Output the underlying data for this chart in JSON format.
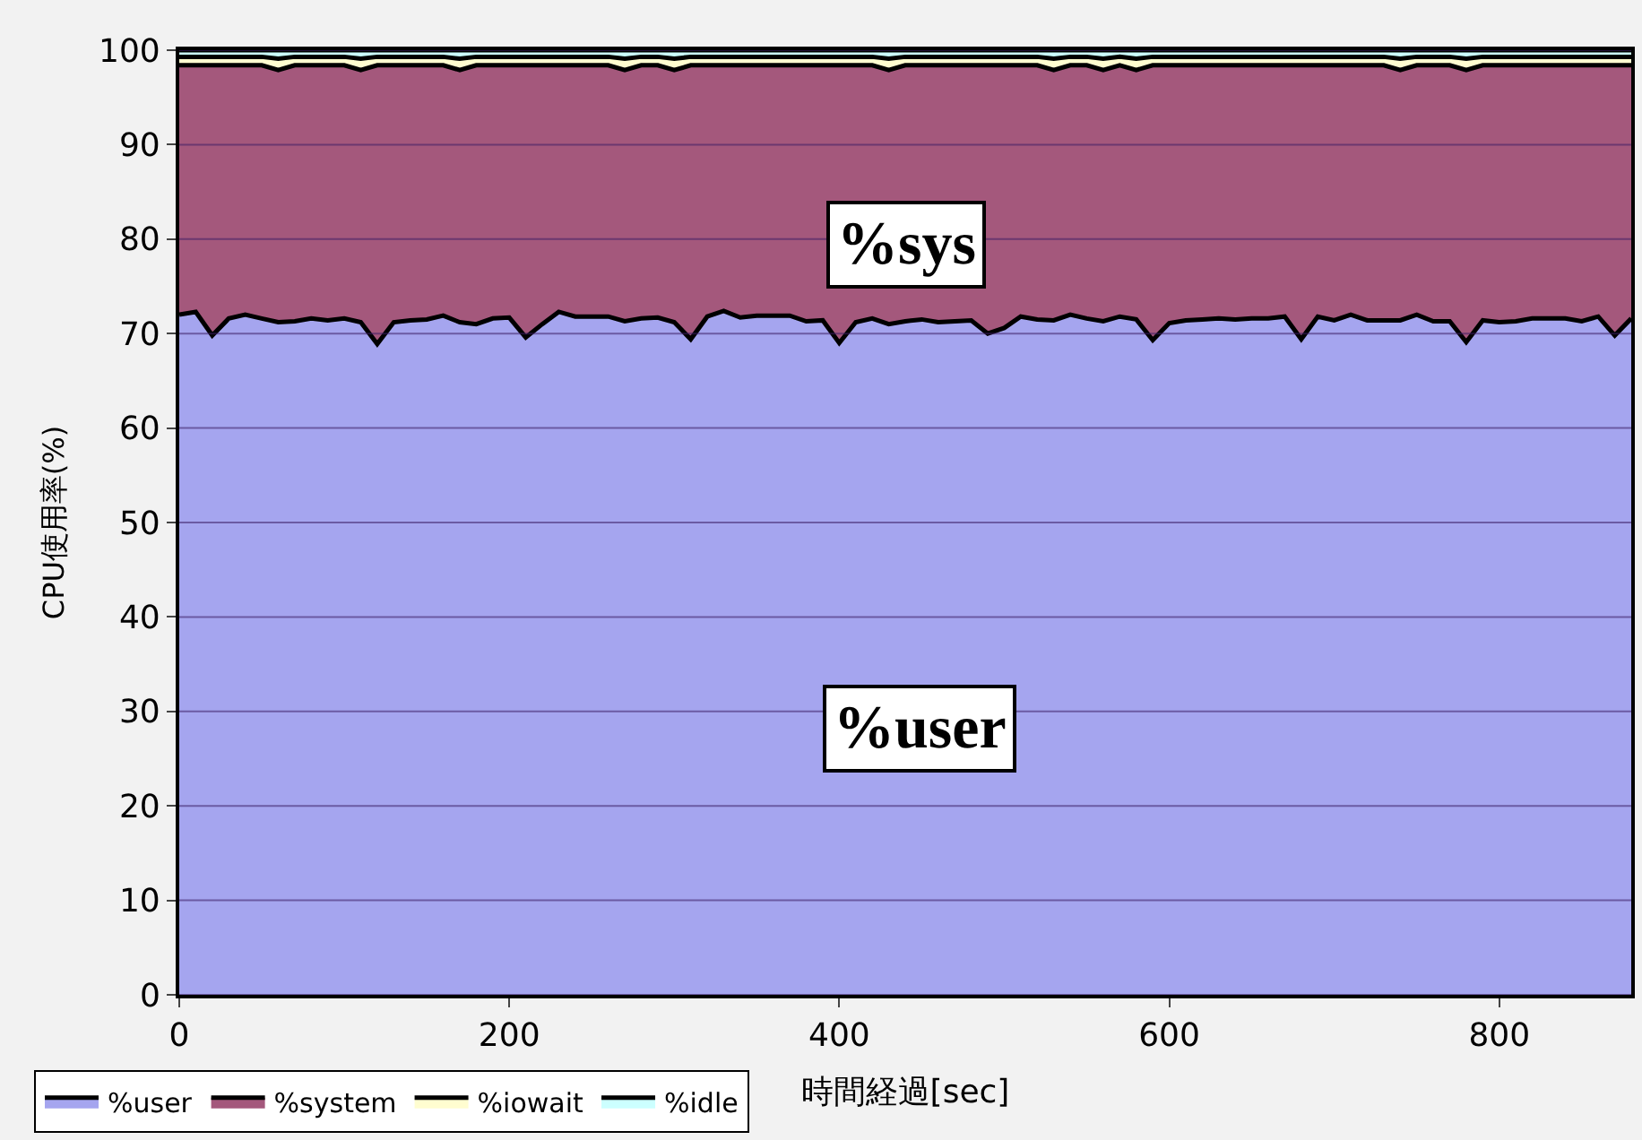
{
  "chart_data": {
    "type": "area",
    "stacked": true,
    "xlabel": "時間経過[sec]",
    "ylabel": "CPU使用率(%)",
    "x": [
      0,
      10,
      20,
      30,
      40,
      50,
      60,
      70,
      80,
      90,
      100,
      110,
      120,
      130,
      140,
      150,
      160,
      170,
      180,
      190,
      200,
      210,
      220,
      230,
      240,
      250,
      260,
      270,
      280,
      290,
      300,
      310,
      320,
      330,
      340,
      350,
      360,
      370,
      380,
      390,
      400,
      410,
      420,
      430,
      440,
      450,
      460,
      470,
      480,
      490,
      500,
      510,
      520,
      530,
      540,
      550,
      560,
      570,
      580,
      590,
      600,
      610,
      620,
      630,
      640,
      650,
      660,
      670,
      680,
      690,
      700,
      710,
      720,
      730,
      740,
      750,
      760,
      770,
      780,
      790,
      800,
      810,
      820,
      830,
      840,
      850,
      860,
      870,
      880
    ],
    "xlim": [
      0,
      880
    ],
    "xticks": [
      0,
      200,
      400,
      600,
      800
    ],
    "ylim": [
      0,
      100
    ],
    "yticks": [
      0,
      10,
      20,
      30,
      40,
      50,
      60,
      70,
      80,
      90,
      100
    ],
    "grid": "y",
    "legend": "bottom left",
    "series": [
      {
        "name": "%user",
        "color": "#a5a5ef",
        "values": [
          72.0,
          72.3,
          69.8,
          71.6,
          72.0,
          71.6,
          71.2,
          71.3,
          71.6,
          71.4,
          71.6,
          71.2,
          68.9,
          71.2,
          71.4,
          71.5,
          71.9,
          71.2,
          71.0,
          71.6,
          71.7,
          69.6,
          71.0,
          72.3,
          71.8,
          71.8,
          71.8,
          71.3,
          71.6,
          71.7,
          71.2,
          69.4,
          71.8,
          72.4,
          71.7,
          71.9,
          71.9,
          71.9,
          71.3,
          71.4,
          69.0,
          71.2,
          71.6,
          71.0,
          71.3,
          71.5,
          71.2,
          71.3,
          71.4,
          70.0,
          70.6,
          71.8,
          71.5,
          71.4,
          72.0,
          71.6,
          71.3,
          71.8,
          71.5,
          69.3,
          71.1,
          71.4,
          71.5,
          71.6,
          71.5,
          71.6,
          71.6,
          71.8,
          69.4,
          71.8,
          71.4,
          72.0,
          71.4,
          71.4,
          71.4,
          72.0,
          71.3,
          71.3,
          69.1,
          71.4,
          71.2,
          71.3,
          71.6,
          71.6,
          71.6,
          71.3,
          71.8,
          69.8,
          71.6
        ]
      },
      {
        "name": "%system",
        "color": "#a4587c",
        "values": [
          26.4,
          26.1,
          28.6,
          26.8,
          26.4,
          26.8,
          26.7,
          27.1,
          26.8,
          27.0,
          26.8,
          26.7,
          29.5,
          27.2,
          27.0,
          26.9,
          26.5,
          26.7,
          27.4,
          26.8,
          26.7,
          28.8,
          27.4,
          26.1,
          26.6,
          26.6,
          26.6,
          26.6,
          26.8,
          26.7,
          26.7,
          29.0,
          26.6,
          26.0,
          26.7,
          26.5,
          26.5,
          26.5,
          27.1,
          27.0,
          29.4,
          27.2,
          26.8,
          26.9,
          27.1,
          26.9,
          27.2,
          27.1,
          27.0,
          28.4,
          27.8,
          26.6,
          26.9,
          26.5,
          26.4,
          26.8,
          26.6,
          26.6,
          26.4,
          29.1,
          27.3,
          27.0,
          26.9,
          26.8,
          26.9,
          26.8,
          26.8,
          26.6,
          29.0,
          26.6,
          27.0,
          26.4,
          27.0,
          27.0,
          26.5,
          26.4,
          27.1,
          27.1,
          28.8,
          27.0,
          27.2,
          27.1,
          26.8,
          26.8,
          26.8,
          27.1,
          26.6,
          28.6,
          26.8
        ]
      },
      {
        "name": "%iowait",
        "color": "#fffdd0",
        "values": [
          0.9,
          0.9,
          0.9,
          0.9,
          0.9,
          0.9,
          1.2,
          0.9,
          0.9,
          0.9,
          0.9,
          1.2,
          0.9,
          0.9,
          0.9,
          0.9,
          0.9,
          1.2,
          0.9,
          0.9,
          0.9,
          0.9,
          0.9,
          0.9,
          0.9,
          0.9,
          0.9,
          1.2,
          0.9,
          0.9,
          1.2,
          0.9,
          0.9,
          0.9,
          0.9,
          0.9,
          0.9,
          0.9,
          0.9,
          0.9,
          0.9,
          0.9,
          0.9,
          1.2,
          0.9,
          0.9,
          0.9,
          0.9,
          0.9,
          0.9,
          0.9,
          0.9,
          0.9,
          1.2,
          0.9,
          0.9,
          1.2,
          0.9,
          1.2,
          0.9,
          0.9,
          0.9,
          0.9,
          0.9,
          0.9,
          0.9,
          0.9,
          0.9,
          0.9,
          0.9,
          0.9,
          0.9,
          0.9,
          0.9,
          1.2,
          0.9,
          0.9,
          0.9,
          1.2,
          0.9,
          0.9,
          0.9,
          0.9,
          0.9,
          0.9,
          0.9,
          0.9,
          0.9,
          0.9
        ]
      },
      {
        "name": "%idle",
        "color": "#ccffff",
        "values": [
          0.7,
          0.7,
          0.7,
          0.7,
          0.7,
          0.7,
          0.9,
          0.7,
          0.7,
          0.7,
          0.7,
          0.9,
          0.7,
          0.7,
          0.7,
          0.7,
          0.7,
          0.9,
          0.7,
          0.7,
          0.7,
          0.7,
          0.7,
          0.7,
          0.7,
          0.7,
          0.7,
          0.9,
          0.7,
          0.7,
          0.9,
          0.7,
          0.7,
          0.7,
          0.7,
          0.7,
          0.7,
          0.7,
          0.7,
          0.7,
          0.7,
          0.7,
          0.7,
          0.9,
          0.7,
          0.7,
          0.7,
          0.7,
          0.7,
          0.7,
          0.7,
          0.7,
          0.7,
          0.9,
          0.7,
          0.7,
          0.9,
          0.7,
          0.9,
          0.7,
          0.7,
          0.7,
          0.7,
          0.7,
          0.7,
          0.7,
          0.7,
          0.7,
          0.7,
          0.7,
          0.7,
          0.7,
          0.7,
          0.7,
          0.9,
          0.7,
          0.7,
          0.7,
          0.9,
          0.7,
          0.7,
          0.7,
          0.7,
          0.7,
          0.7,
          0.7,
          0.7,
          0.7,
          0.7
        ]
      }
    ],
    "annotations": [
      "%sys",
      "%user"
    ]
  }
}
